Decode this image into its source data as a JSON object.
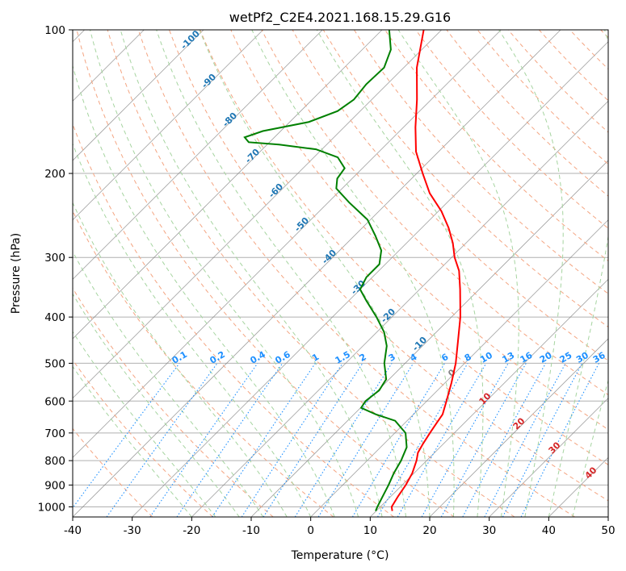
{
  "chart_data": {
    "type": "skew-t log-p sounding",
    "title": "wetPf2_C2E4.2021.168.15.29.G16",
    "xlabel": "Temperature (°C)",
    "ylabel": "Pressure (hPa)",
    "xlim": [
      -40,
      50
    ],
    "ylim_hpa": [
      1050,
      100
    ],
    "y_scale": "log",
    "grid": true,
    "x_ticks": [
      -40,
      -30,
      -20,
      -10,
      0,
      10,
      20,
      30,
      40,
      50
    ],
    "y_ticks": [
      1000,
      900,
      800,
      700,
      600,
      500,
      400,
      300,
      200,
      100
    ],
    "series": [
      {
        "color": "#ff0000",
        "points": [
          [
            1020,
            12.7
          ],
          [
            1000,
            11.9
          ],
          [
            950,
            11.2
          ],
          [
            900,
            10.6
          ],
          [
            850,
            9.7
          ],
          [
            800,
            8.3
          ],
          [
            770,
            7.2
          ],
          [
            740,
            6.6
          ],
          [
            700,
            5.9
          ],
          [
            670,
            5.4
          ],
          [
            640,
            4.9
          ],
          [
            600,
            3.3
          ],
          [
            550,
            1.1
          ],
          [
            500,
            -1.5
          ],
          [
            450,
            -4.8
          ],
          [
            400,
            -8.5
          ],
          [
            350,
            -13.2
          ],
          [
            320,
            -16.5
          ],
          [
            300,
            -19.5
          ],
          [
            280,
            -22.2
          ],
          [
            260,
            -25.5
          ],
          [
            240,
            -29.5
          ],
          [
            220,
            -34.5
          ],
          [
            200,
            -39.0
          ],
          [
            180,
            -43.8
          ],
          [
            160,
            -48.0
          ],
          [
            140,
            -52.4
          ],
          [
            120,
            -57.8
          ],
          [
            100,
            -63.0
          ]
        ]
      },
      {
        "color": "#008000",
        "points": [
          [
            1020,
            9.9
          ],
          [
            1000,
            9.5
          ],
          [
            960,
            8.8
          ],
          [
            900,
            7.7
          ],
          [
            850,
            6.6
          ],
          [
            800,
            5.7
          ],
          [
            750,
            4.4
          ],
          [
            700,
            1.8
          ],
          [
            660,
            -2.0
          ],
          [
            640,
            -6.3
          ],
          [
            620,
            -9.9
          ],
          [
            600,
            -10.3
          ],
          [
            570,
            -9.8
          ],
          [
            540,
            -10.5
          ],
          [
            500,
            -13.5
          ],
          [
            460,
            -16.0
          ],
          [
            430,
            -18.8
          ],
          [
            400,
            -22.6
          ],
          [
            370,
            -27.0
          ],
          [
            350,
            -30.0
          ],
          [
            330,
            -31.0
          ],
          [
            310,
            -31.0
          ],
          [
            290,
            -33.0
          ],
          [
            270,
            -36.5
          ],
          [
            250,
            -40.5
          ],
          [
            230,
            -46.5
          ],
          [
            215,
            -51.0
          ],
          [
            205,
            -52.5
          ],
          [
            195,
            -53.0
          ],
          [
            185,
            -56.0
          ],
          [
            178,
            -61.0
          ],
          [
            174,
            -68.0
          ],
          [
            172,
            -73.5
          ],
          [
            168,
            -75.0
          ],
          [
            163,
            -73.0
          ],
          [
            156,
            -66.8
          ],
          [
            148,
            -63.8
          ],
          [
            140,
            -63.0
          ],
          [
            130,
            -63.5
          ],
          [
            120,
            -63.3
          ],
          [
            110,
            -65.2
          ],
          [
            100,
            -68.8
          ]
        ]
      }
    ],
    "isotherm_labels": [
      "0",
      "10",
      "20",
      "30",
      "40"
    ],
    "dry_adiabat_labels": [
      "-100",
      "-90",
      "-80",
      "-70",
      "-60",
      "-50",
      "-40",
      "-30",
      "-20",
      "-10"
    ],
    "mixing_ratio_labels": [
      "0.1",
      "0.2",
      "0.4",
      "0.6",
      "1",
      "1.5",
      "2",
      "3",
      "4",
      "6",
      "8",
      "10",
      "13",
      "16",
      "20",
      "25",
      "30",
      "36"
    ],
    "colors": {
      "temperature": "#ff0000",
      "dewpoint": "#008000",
      "isotherm_labels": "#d62728",
      "dry_adiabat_labels": "#1f77b4",
      "mixing_ratio_lines": "#1e90ff",
      "dry_adiabats": "#f4a582",
      "moist_adiabats": "#a6d4a0",
      "skewed_isotherms": "#808080",
      "pressure_grid": "#b0b0b0"
    }
  }
}
